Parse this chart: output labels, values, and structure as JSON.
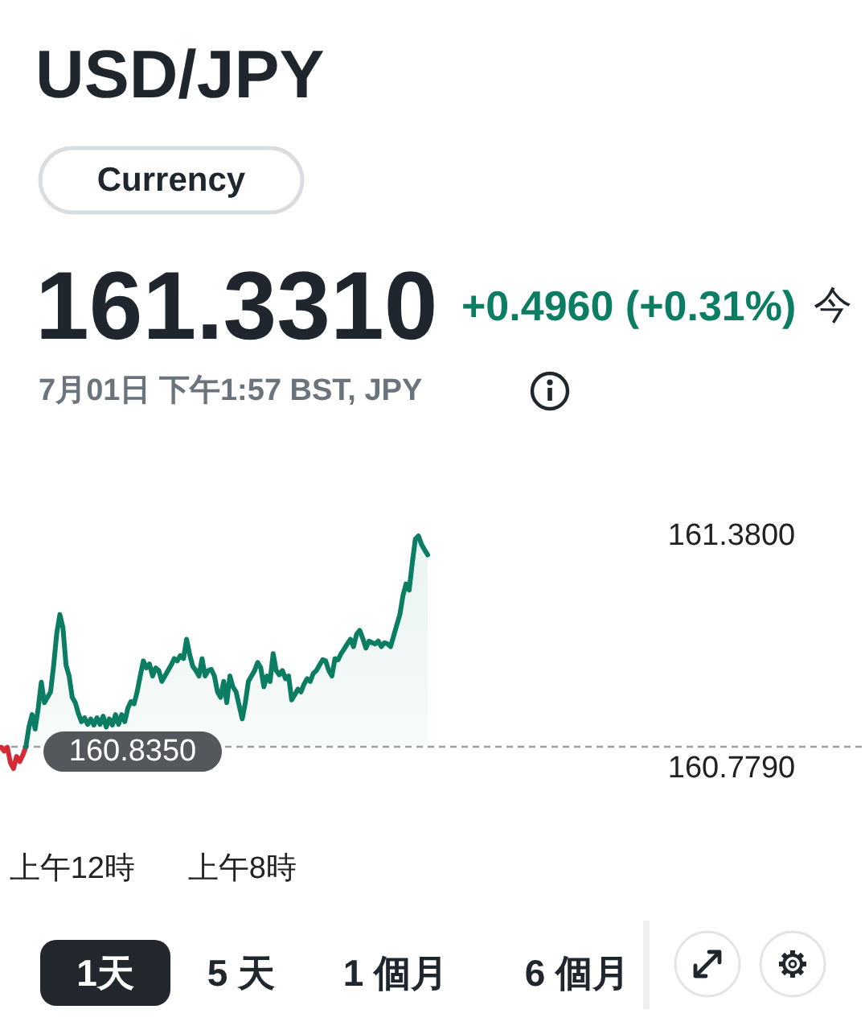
{
  "chart_data": {
    "type": "line",
    "title": "USD/JPY",
    "subtitle": "7月01日 下午1:57 BST, JPY",
    "annotations": [
      "Currency",
      "161.3310",
      "+0.4960 (+0.31%)",
      "今",
      "1天",
      "5 天",
      "1 個月",
      "6 個月"
    ],
    "categories": [
      null,
      null,
      null,
      null,
      null,
      null,
      null,
      null,
      null,
      null,
      null,
      null,
      null,
      null,
      null,
      null,
      null,
      null,
      null,
      null,
      null,
      null,
      null,
      "上午12時",
      null,
      null,
      null,
      null,
      null,
      null,
      null,
      null,
      null,
      null,
      null,
      null,
      null,
      null,
      null,
      null,
      null,
      null,
      null,
      null,
      null,
      null,
      null,
      null,
      null,
      null,
      null,
      null,
      null,
      null,
      null,
      null,
      null,
      null,
      null,
      null,
      null,
      null,
      null,
      null,
      null,
      null,
      null,
      null,
      null,
      null,
      null,
      null,
      null,
      null,
      null,
      null,
      null,
      null,
      "上午8時",
      null,
      null,
      null,
      null,
      null,
      null,
      null,
      null,
      null,
      null,
      null,
      null,
      null,
      null,
      null,
      null,
      null,
      null,
      null,
      null,
      null,
      null,
      null,
      null,
      null,
      null,
      null,
      null,
      null,
      null,
      null,
      null,
      null,
      null,
      null,
      null,
      null,
      null,
      null,
      null,
      null,
      null,
      null,
      null,
      null,
      null,
      null,
      null,
      null,
      null,
      null,
      null,
      null,
      null,
      null,
      null,
      null,
      null,
      null,
      null,
      null,
      null,
      null,
      null,
      null,
      null,
      null,
      null,
      null,
      null,
      null,
      null,
      null,
      null,
      null,
      null,
      null,
      null,
      null,
      null,
      null,
      null,
      null,
      null,
      null,
      null,
      null,
      null,
      null,
      null,
      null,
      null,
      null,
      null,
      null,
      null,
      null,
      null,
      null,
      null,
      null,
      null,
      null,
      null,
      null,
      null,
      null,
      null,
      null,
      null,
      null,
      null,
      null,
      null,
      null,
      null,
      null,
      null,
      null,
      null,
      null,
      null,
      null,
      null,
      null,
      null,
      null,
      null,
      null,
      null,
      null,
      null,
      null,
      null,
      null,
      null,
      null,
      null,
      null,
      null,
      null,
      null,
      null,
      null,
      null,
      null,
      null,
      null,
      null,
      null,
      null,
      null,
      null,
      null,
      null,
      null,
      null,
      null,
      null,
      null,
      null,
      null,
      null,
      null,
      null,
      null,
      null,
      null,
      null,
      null,
      null,
      null,
      null,
      null,
      null,
      null,
      null,
      null,
      null,
      null,
      null,
      null,
      null,
      null,
      null,
      null,
      null,
      null,
      null,
      null,
      null,
      null,
      null,
      null,
      null,
      null,
      null,
      null,
      null,
      null,
      null
    ],
    "ylim": [
      160.779,
      161.38
    ],
    "yticks": [
      {
        "value": 161.38,
        "label": "161.3800"
      },
      {
        "value": 160.779,
        "label": "160.7790"
      }
    ],
    "ref_lines": [
      {
        "axis": "y",
        "value": 160.835,
        "label": "160.8350",
        "color": "#9aa0a6",
        "line_style": "dashed"
      }
    ],
    "series": [
      {
        "type": "line",
        "color": "#d42a35",
        "values": [
          160.834,
          160.824,
          160.834,
          160.794,
          160.779,
          160.81,
          160.797,
          160.813,
          160.835,
          null,
          null,
          null,
          null,
          null,
          null,
          null,
          null,
          null,
          null,
          null,
          null,
          null,
          null,
          null,
          null,
          null,
          null,
          null,
          null,
          null,
          null,
          null,
          null,
          null,
          null,
          null,
          null,
          null,
          null,
          null,
          null,
          null,
          null,
          null,
          null,
          null,
          null,
          null,
          null,
          null,
          null,
          null,
          null,
          null,
          null,
          null,
          null,
          null,
          null,
          null,
          null,
          null,
          null,
          null,
          null,
          null,
          null,
          null,
          null,
          null,
          null,
          null,
          null,
          null,
          null,
          null,
          null,
          null,
          null,
          null,
          null,
          null,
          null,
          null,
          null,
          null,
          null,
          null,
          null,
          null,
          null,
          null,
          null,
          null,
          null,
          null,
          null,
          null,
          null,
          null,
          null,
          null,
          null,
          null,
          null,
          null,
          null,
          null,
          null,
          null,
          null,
          null,
          null,
          null,
          null,
          null,
          null,
          null,
          null,
          null,
          null,
          null,
          null,
          null,
          null,
          null,
          null,
          null,
          null,
          null,
          null,
          null,
          null,
          null,
          null,
          null,
          null,
          null,
          null,
          null,
          null,
          null,
          null,
          null,
          null,
          null,
          null,
          null,
          null,
          null,
          null,
          null,
          null,
          null,
          null,
          null,
          null,
          null,
          null,
          null,
          null,
          null,
          null,
          null,
          null,
          null,
          null,
          null,
          null,
          null,
          null,
          null,
          null,
          null,
          null,
          null,
          null,
          null,
          null,
          null,
          null,
          null,
          null,
          null,
          null,
          null,
          null,
          null,
          null,
          null,
          null,
          null,
          null,
          null,
          null,
          null,
          null,
          null,
          null,
          null,
          null,
          null,
          null,
          null,
          null,
          null,
          null,
          null,
          null,
          null,
          null,
          null,
          null,
          null,
          null,
          null,
          null,
          null,
          null,
          null,
          null,
          null,
          null,
          null,
          null,
          null,
          null,
          null,
          null,
          null,
          null,
          null,
          null,
          null,
          null,
          null,
          null,
          null,
          null,
          null,
          null,
          null,
          null,
          null,
          null,
          null,
          null,
          null,
          null,
          null,
          null,
          null,
          null,
          null,
          null,
          null,
          null,
          null,
          null,
          null,
          null,
          null,
          null,
          null,
          null,
          null,
          null,
          null,
          null,
          null,
          null,
          null,
          null,
          null,
          null,
          null,
          null,
          null,
          null,
          null
        ]
      },
      {
        "type": "area",
        "color": "#0b7d63",
        "values": [
          null,
          null,
          null,
          null,
          null,
          null,
          null,
          null,
          160.835,
          160.886,
          160.918,
          160.881,
          160.935,
          161.002,
          160.949,
          160.963,
          160.977,
          161.046,
          161.129,
          161.177,
          161.143,
          161.046,
          161.018,
          160.963,
          160.949,
          160.921,
          160.9,
          160.91,
          160.893,
          160.907,
          160.891,
          160.91,
          160.893,
          160.914,
          160.886,
          160.907,
          160.891,
          160.918,
          160.893,
          160.918,
          160.9,
          160.935,
          160.952,
          160.946,
          160.977,
          161.018,
          161.057,
          161.039,
          161.049,
          161.018,
          161.039,
          161.032,
          161.004,
          161.018,
          161.032,
          161.046,
          161.063,
          161.057,
          161.071,
          161.063,
          161.113,
          161.073,
          161.043,
          161.032,
          161.018,
          161.063,
          161.018,
          161.032,
          161.035,
          161.018,
          160.977,
          160.963,
          161.004,
          160.949,
          161.018,
          160.99,
          160.977,
          160.942,
          160.907,
          160.949,
          161.004,
          161.018,
          161.032,
          161.053,
          161.039,
          160.99,
          161.018,
          161.004,
          161.076,
          161.032,
          161.021,
          161.032,
          161.011,
          161.018,
          160.956,
          160.97,
          160.984,
          160.977,
          160.997,
          161.011,
          161.004,
          161.025,
          161.032,
          161.046,
          161.06,
          161.057,
          161.032,
          161.018,
          161.063,
          161.06,
          161.076,
          161.088,
          161.101,
          161.113,
          161.094,
          161.126,
          161.136,
          161.115,
          161.09,
          161.108,
          161.104,
          161.101,
          161.108,
          161.094,
          161.104,
          161.101,
          161.094,
          161.122,
          161.15,
          161.177,
          161.226,
          161.256,
          161.24,
          161.309,
          161.372,
          161.38,
          161.358,
          161.344,
          161.331,
          null,
          null,
          null,
          null,
          null,
          null,
          null,
          null,
          null,
          null,
          null,
          null,
          null,
          null,
          null,
          null,
          null,
          null,
          null,
          null,
          null,
          null,
          null,
          null,
          null,
          null,
          null,
          null,
          null,
          null,
          null,
          null,
          null,
          null,
          null,
          null,
          null,
          null,
          null,
          null,
          null,
          null,
          null,
          null,
          null,
          null,
          null,
          null,
          null,
          null,
          null,
          null,
          null,
          null,
          null,
          null,
          null,
          null,
          null,
          null,
          null,
          null,
          null,
          null,
          null,
          null,
          null,
          null,
          null,
          null,
          null,
          null,
          null,
          null,
          null,
          null,
          null,
          null,
          null,
          null,
          null,
          null,
          null,
          null,
          null,
          null,
          null,
          null,
          null,
          null,
          null,
          null,
          null,
          null,
          null,
          null,
          null,
          null,
          null,
          null,
          null,
          null,
          null,
          null,
          null,
          null,
          null,
          null,
          null,
          null,
          null,
          null,
          null,
          null,
          null,
          null,
          null,
          null,
          null,
          null,
          null,
          null,
          null,
          null,
          null,
          null,
          null,
          null,
          null,
          null,
          null,
          null,
          null,
          null,
          null,
          null,
          null,
          null,
          null,
          null,
          null
        ]
      }
    ]
  }
}
